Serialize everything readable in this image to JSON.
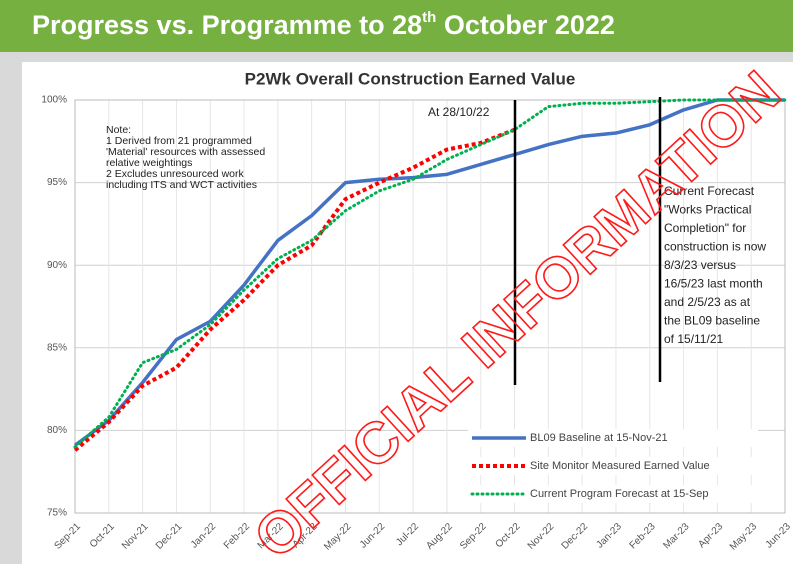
{
  "header": {
    "title_before": "Progress vs. Programme to 28",
    "title_sup": "th",
    "title_after": " October 2022"
  },
  "watermark": "OFFICIAL INFORMATION",
  "chart_data": {
    "type": "line",
    "title": "P2Wk Overall Construction Earned Value",
    "categories": [
      "Sep-21",
      "Oct-21",
      "Nov-21",
      "Dec-21",
      "Jan-22",
      "Feb-22",
      "Mar-22",
      "Apr-22",
      "May-22",
      "Jun-22",
      "Jul-22",
      "Aug-22",
      "Sep-22",
      "Oct-22",
      "Nov-22",
      "Dec-22",
      "Jan-23",
      "Feb-23",
      "Mar-23",
      "Apr-23",
      "May-23",
      "Jun-23"
    ],
    "series": [
      {
        "name": "BL09 Baseline at 15-Nov-21",
        "color": "#4472c4",
        "values": [
          79.1,
          80.6,
          82.9,
          85.5,
          86.6,
          88.8,
          91.5,
          93.0,
          95.0,
          95.2,
          95.3,
          95.5,
          96.1,
          96.7,
          97.3,
          97.8,
          98.0,
          98.5,
          99.4,
          100,
          100,
          100
        ]
      },
      {
        "name": "Site Monitor Measured Earned Value",
        "color": "#ff0000",
        "values": [
          78.8,
          80.5,
          82.7,
          83.8,
          86.1,
          87.9,
          90.0,
          91.2,
          94.0,
          95.0,
          95.9,
          97.0,
          97.4,
          98.2,
          null,
          null,
          null,
          null,
          null,
          null,
          null,
          null
        ]
      },
      {
        "name": "Current Program Forecast at 15-Sep",
        "color": "#00b050",
        "values": [
          79.0,
          80.8,
          84.1,
          84.9,
          86.4,
          88.5,
          90.4,
          91.5,
          93.3,
          94.5,
          95.2,
          96.4,
          97.3,
          98.2,
          99.6,
          99.8,
          99.8,
          99.9,
          100,
          100,
          100,
          100
        ]
      }
    ],
    "ylim": [
      75,
      100
    ],
    "yticks": [
      {
        "value": 75,
        "label": "75%"
      },
      {
        "value": 80,
        "label": "80%"
      },
      {
        "value": 85,
        "label": "85%"
      },
      {
        "value": 90,
        "label": "90%"
      },
      {
        "value": 95,
        "label": "95%"
      },
      {
        "value": 100,
        "label": "100%"
      }
    ],
    "grid": true,
    "annotations": [
      "At 28/10/22"
    ],
    "note": [
      "Note:",
      "1  Derived from 21 programmed",
      "'Material' resources with assessed",
      "relative weightings",
      "2  Excludes unresourced work",
      "including ITS and WCT activities"
    ],
    "forecast_note": [
      "Current Forecast",
      "\"Works Practical",
      "Completion\"  for",
      "construction  is now",
      "8/3/23 versus",
      "16/5/23 last month",
      "and 2/5/23 as at",
      "the BL09 baseline",
      "of 15/11/21"
    ]
  }
}
